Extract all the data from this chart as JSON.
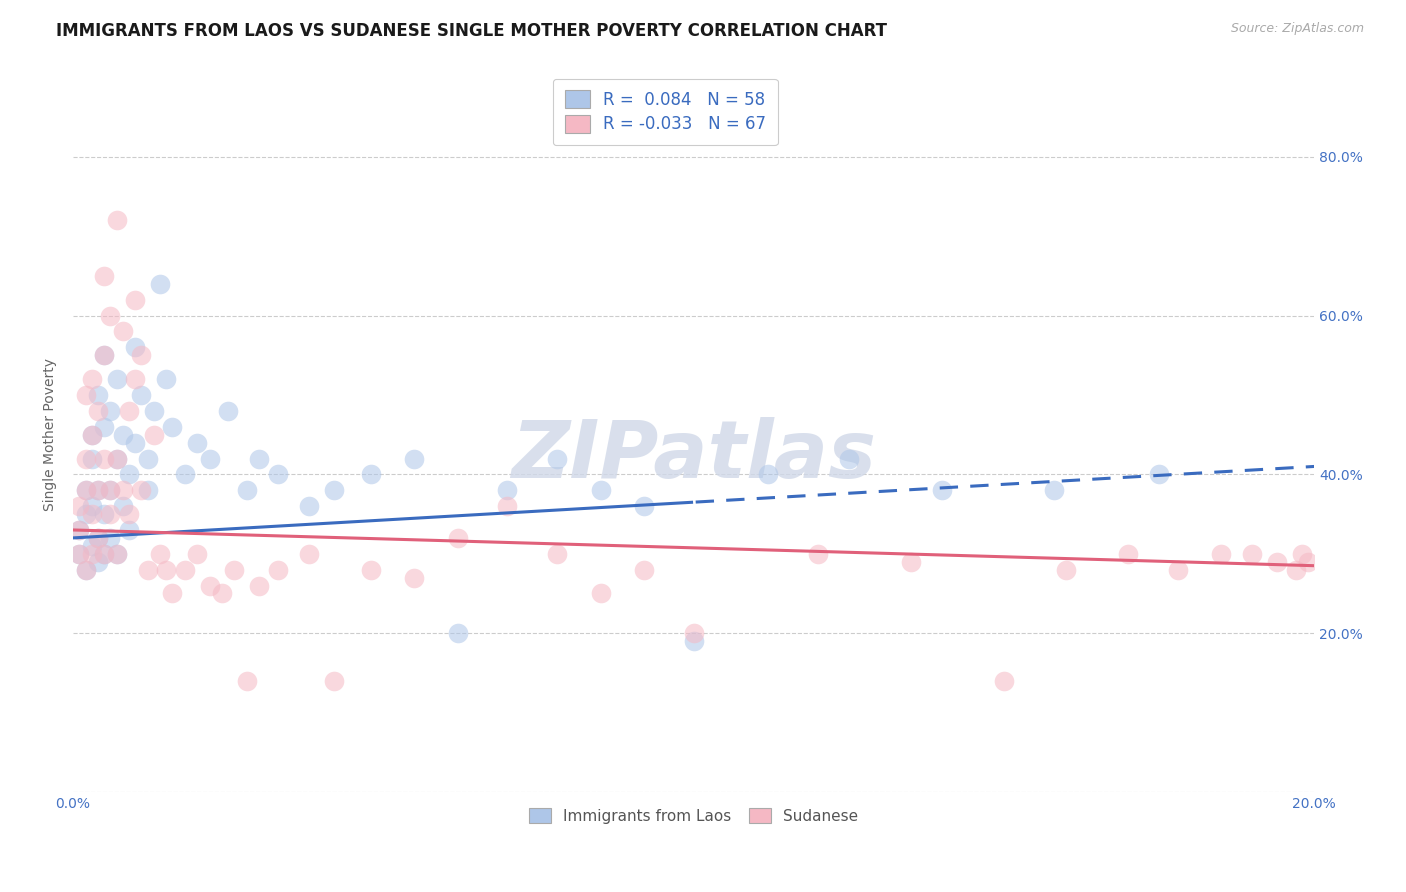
{
  "title": "IMMIGRANTS FROM LAOS VS SUDANESE SINGLE MOTHER POVERTY CORRELATION CHART",
  "source": "Source: ZipAtlas.com",
  "ylabel": "Single Mother Poverty",
  "xlim": [
    0.0,
    0.2
  ],
  "ylim": [
    0.0,
    0.9
  ],
  "x_ticks": [
    0.0,
    0.05,
    0.1,
    0.15,
    0.2
  ],
  "x_tick_labels": [
    "0.0%",
    "",
    "",
    "",
    "20.0%"
  ],
  "y_ticks": [
    0.0,
    0.2,
    0.4,
    0.6,
    0.8
  ],
  "y_tick_labels_left": [
    "",
    "",
    "",
    "",
    ""
  ],
  "y_tick_labels_right": [
    "",
    "20.0%",
    "40.0%",
    "60.0%",
    "80.0%"
  ],
  "legend_items": [
    "Immigrants from Laos",
    "Sudanese"
  ],
  "r_blue": 0.084,
  "n_blue": 58,
  "r_pink": -0.033,
  "n_pink": 67,
  "color_blue": "#aec6e8",
  "color_pink": "#f5b8c4",
  "line_color_blue": "#3a6bbf",
  "line_color_pink": "#e0607a",
  "watermark": "ZIPatlas",
  "blue_scatter_x": [
    0.001,
    0.001,
    0.002,
    0.002,
    0.002,
    0.003,
    0.003,
    0.003,
    0.003,
    0.004,
    0.004,
    0.004,
    0.004,
    0.005,
    0.005,
    0.005,
    0.005,
    0.006,
    0.006,
    0.006,
    0.007,
    0.007,
    0.007,
    0.008,
    0.008,
    0.009,
    0.009,
    0.01,
    0.01,
    0.011,
    0.012,
    0.012,
    0.013,
    0.014,
    0.015,
    0.016,
    0.018,
    0.02,
    0.022,
    0.025,
    0.028,
    0.03,
    0.033,
    0.038,
    0.042,
    0.048,
    0.055,
    0.062,
    0.07,
    0.078,
    0.085,
    0.092,
    0.1,
    0.112,
    0.125,
    0.14,
    0.158,
    0.175
  ],
  "blue_scatter_y": [
    0.33,
    0.3,
    0.35,
    0.28,
    0.38,
    0.31,
    0.36,
    0.42,
    0.45,
    0.29,
    0.32,
    0.38,
    0.5,
    0.3,
    0.35,
    0.46,
    0.55,
    0.32,
    0.38,
    0.48,
    0.3,
    0.42,
    0.52,
    0.36,
    0.45,
    0.33,
    0.4,
    0.44,
    0.56,
    0.5,
    0.38,
    0.42,
    0.48,
    0.64,
    0.52,
    0.46,
    0.4,
    0.44,
    0.42,
    0.48,
    0.38,
    0.42,
    0.4,
    0.36,
    0.38,
    0.4,
    0.42,
    0.2,
    0.38,
    0.42,
    0.38,
    0.36,
    0.19,
    0.4,
    0.42,
    0.38,
    0.38,
    0.4
  ],
  "pink_scatter_x": [
    0.001,
    0.001,
    0.001,
    0.002,
    0.002,
    0.002,
    0.002,
    0.003,
    0.003,
    0.003,
    0.003,
    0.004,
    0.004,
    0.004,
    0.005,
    0.005,
    0.005,
    0.005,
    0.006,
    0.006,
    0.006,
    0.007,
    0.007,
    0.007,
    0.008,
    0.008,
    0.009,
    0.009,
    0.01,
    0.01,
    0.011,
    0.011,
    0.012,
    0.013,
    0.014,
    0.015,
    0.016,
    0.018,
    0.02,
    0.022,
    0.024,
    0.026,
    0.028,
    0.03,
    0.033,
    0.038,
    0.042,
    0.048,
    0.055,
    0.062,
    0.07,
    0.078,
    0.085,
    0.092,
    0.1,
    0.12,
    0.135,
    0.15,
    0.16,
    0.17,
    0.178,
    0.185,
    0.19,
    0.194,
    0.197,
    0.198,
    0.199
  ],
  "pink_scatter_y": [
    0.33,
    0.36,
    0.3,
    0.42,
    0.5,
    0.38,
    0.28,
    0.45,
    0.52,
    0.35,
    0.3,
    0.48,
    0.38,
    0.32,
    0.55,
    0.65,
    0.42,
    0.3,
    0.6,
    0.38,
    0.35,
    0.72,
    0.42,
    0.3,
    0.58,
    0.38,
    0.48,
    0.35,
    0.52,
    0.62,
    0.38,
    0.55,
    0.28,
    0.45,
    0.3,
    0.28,
    0.25,
    0.28,
    0.3,
    0.26,
    0.25,
    0.28,
    0.14,
    0.26,
    0.28,
    0.3,
    0.14,
    0.28,
    0.27,
    0.32,
    0.36,
    0.3,
    0.25,
    0.28,
    0.2,
    0.3,
    0.29,
    0.14,
    0.28,
    0.3,
    0.28,
    0.3,
    0.3,
    0.29,
    0.28,
    0.3,
    0.29
  ],
  "grid_color": "#cccccc",
  "background_color": "#ffffff",
  "title_fontsize": 12,
  "axis_label_fontsize": 10,
  "tick_fontsize": 10,
  "tick_color": "#4472c4"
}
